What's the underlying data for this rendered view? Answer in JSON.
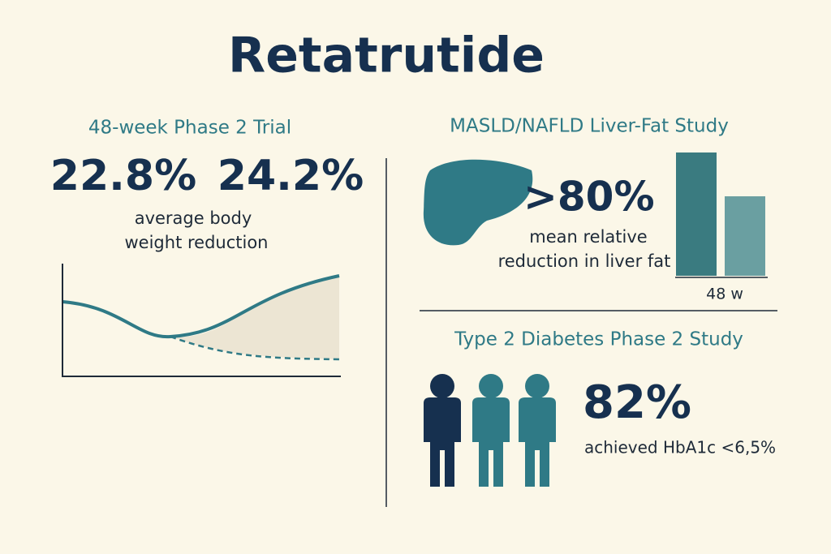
{
  "header": {
    "title": "Retatrutide"
  },
  "weight_trial": {
    "heading": "48-week Phase 2 Trial",
    "stats": [
      "22.8%",
      "24.2%"
    ],
    "caption": [
      "average body",
      "weight reduction"
    ]
  },
  "liver_study": {
    "heading": "MASLD/NAFLD Liver-Fat Study",
    "stat": ">80%",
    "caption": [
      "mean relative",
      "reduction in liver fat"
    ],
    "bar_label": "48 w"
  },
  "diabetes_study": {
    "heading": "Type 2 Diabetes Phase 2 Study",
    "stat": "82%",
    "caption": "achieved HbA1c <6,5%"
  }
}
